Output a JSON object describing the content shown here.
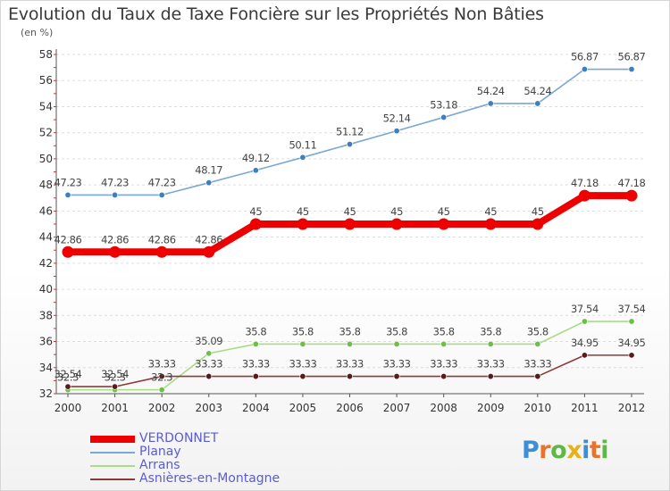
{
  "title": "Evolution du Taux de Taxe Foncière sur les Propriétés Non Bâties",
  "unit_label": "(en %)",
  "logo": {
    "text": "Proxiti",
    "letters": [
      "P",
      "r",
      "o",
      "x",
      "i",
      "t",
      "i"
    ],
    "colors": [
      "#3c8fd6",
      "#e8732b",
      "#5fb845",
      "#e5b21c",
      "#3c8fd6",
      "#e8732b",
      "#5fb845"
    ]
  },
  "chart_data": {
    "type": "line",
    "title": "Evolution du Taux de Taxe Foncière sur les Propriétés Non Bâties",
    "ylabel": "(en %)",
    "xlabel": "",
    "x": [
      "2000",
      "2001",
      "2002",
      "2003",
      "2004",
      "2005",
      "2006",
      "2007",
      "2008",
      "2009",
      "2010",
      "2011",
      "2012"
    ],
    "ylim": [
      32,
      58
    ],
    "yticks": [
      32,
      34,
      36,
      38,
      40,
      42,
      44,
      46,
      48,
      50,
      52,
      54,
      56,
      58
    ],
    "grid": "horizontal dashed",
    "legend_position": "bottom-left",
    "series": [
      {
        "name": "VERDONNET",
        "color": "#ee0000",
        "labels": [
          "42.86",
          "42.86",
          "42.86",
          "42.86",
          "45",
          "45",
          "45",
          "45",
          "45",
          "45",
          "45",
          "47.18",
          "47.18"
        ],
        "values": [
          42.86,
          42.86,
          42.86,
          42.86,
          45,
          45,
          45,
          45,
          45,
          45,
          45,
          47.18,
          47.18
        ]
      },
      {
        "name": "Planay",
        "color": "#7aa8d4",
        "marker": "#3f7fbf",
        "labels": [
          "47.23",
          "47.23",
          "47.23",
          "48.17",
          "49.12",
          "50.11",
          "51.12",
          "52.14",
          "53.18",
          "54.24",
          "54.24",
          "56.87",
          "56.87"
        ],
        "values": [
          47.23,
          47.23,
          47.23,
          48.17,
          49.12,
          50.11,
          51.12,
          52.14,
          53.18,
          54.24,
          54.24,
          56.87,
          56.87
        ]
      },
      {
        "name": "Arrans",
        "color": "#a8dc88",
        "marker": "#6cc04a",
        "labels": [
          "32.3",
          "32.3",
          "32.3",
          "35.09",
          "35.8",
          "35.8",
          "35.8",
          "35.8",
          "35.8",
          "35.8",
          "35.8",
          "37.54",
          "37.54"
        ],
        "values": [
          32.3,
          32.3,
          32.3,
          35.09,
          35.8,
          35.8,
          35.8,
          35.8,
          35.8,
          35.8,
          35.8,
          37.54,
          37.54
        ]
      },
      {
        "name": "Asnières-en-Montagne",
        "color": "#8a3a3a",
        "marker": "#5a1a1a",
        "labels": [
          "32.54",
          "32.54",
          "33.33",
          "33.33",
          "33.33",
          "33.33",
          "33.33",
          "33.33",
          "33.33",
          "33.33",
          "33.33",
          "34.95",
          "34.95"
        ],
        "values": [
          32.54,
          32.54,
          33.33,
          33.33,
          33.33,
          33.33,
          33.33,
          33.33,
          33.33,
          33.33,
          33.33,
          34.95,
          34.95
        ]
      }
    ]
  }
}
